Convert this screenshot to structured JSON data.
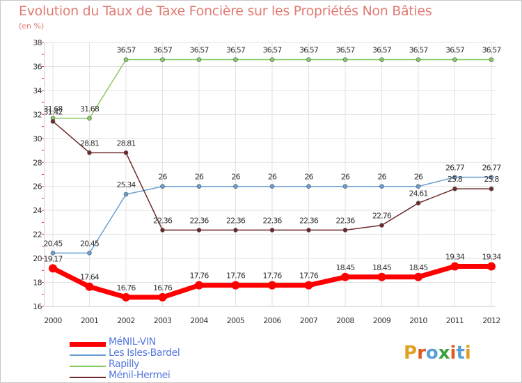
{
  "title": "Evolution du Taux de Taxe Foncière sur les Propriétés Non Bâties",
  "subtitle": "(en %)",
  "logo": {
    "text": "Proxiti",
    "colors": [
      "#e0a020",
      "#e05a20",
      "#5aa0d8",
      "#3aa040",
      "#e05a20",
      "#5aa0d8",
      "#e0a020"
    ]
  },
  "chart_data": {
    "type": "line",
    "x": [
      "2000",
      "2001",
      "2002",
      "2003",
      "2004",
      "2005",
      "2006",
      "2007",
      "2008",
      "2009",
      "2010",
      "2011",
      "2012"
    ],
    "ylim": [
      16,
      38
    ],
    "yticks": [
      "16",
      "18",
      "20",
      "22",
      "24",
      "26",
      "28",
      "30",
      "32",
      "34",
      "36",
      "38"
    ],
    "grid": true,
    "legend_position": "bottom-left",
    "series": [
      {
        "name": "MéNIL-VIN",
        "color": "#ff0000",
        "values": [
          19.17,
          17.64,
          16.76,
          16.76,
          17.76,
          17.76,
          17.76,
          17.76,
          18.45,
          18.45,
          18.45,
          19.34,
          19.34
        ],
        "labels": [
          "19.17",
          "17.64",
          "16.76",
          "16.76",
          "17.76",
          "17.76",
          "17.76",
          "17.76",
          "18.45",
          "18.45",
          "18.45",
          "19.34",
          "19.34"
        ]
      },
      {
        "name": "Les Isles-Bardel",
        "color": "#6a9fd4",
        "values": [
          20.45,
          20.45,
          25.34,
          26,
          26,
          26,
          26,
          26,
          26,
          26,
          26,
          26.77,
          26.77
        ],
        "labels": [
          "20.45",
          "20.45",
          "25.34",
          "26",
          "26",
          "26",
          "26",
          "26",
          "26",
          "26",
          "26",
          "26.77",
          "26.77"
        ]
      },
      {
        "name": "Rapilly",
        "color": "#88cc66",
        "values": [
          31.68,
          31.68,
          36.57,
          36.57,
          36.57,
          36.57,
          36.57,
          36.57,
          36.57,
          36.57,
          36.57,
          36.57,
          36.57
        ],
        "labels": [
          "31.68",
          "31.68",
          "36.57",
          "36.57",
          "36.57",
          "36.57",
          "36.57",
          "36.57",
          "36.57",
          "36.57",
          "36.57",
          "36.57",
          "36.57"
        ]
      },
      {
        "name": "Ménil-Hermei",
        "color": "#6e2a2a",
        "values": [
          31.42,
          28.81,
          28.81,
          22.36,
          22.36,
          22.36,
          22.36,
          22.36,
          22.36,
          22.76,
          24.61,
          25.8,
          25.8
        ],
        "labels": [
          "31.42",
          "28.81",
          "28.81",
          "22.36",
          "22.36",
          "22.36",
          "22.36",
          "22.36",
          "22.36",
          "22.76",
          "24.61",
          "25.8",
          "25.8"
        ]
      }
    ]
  }
}
